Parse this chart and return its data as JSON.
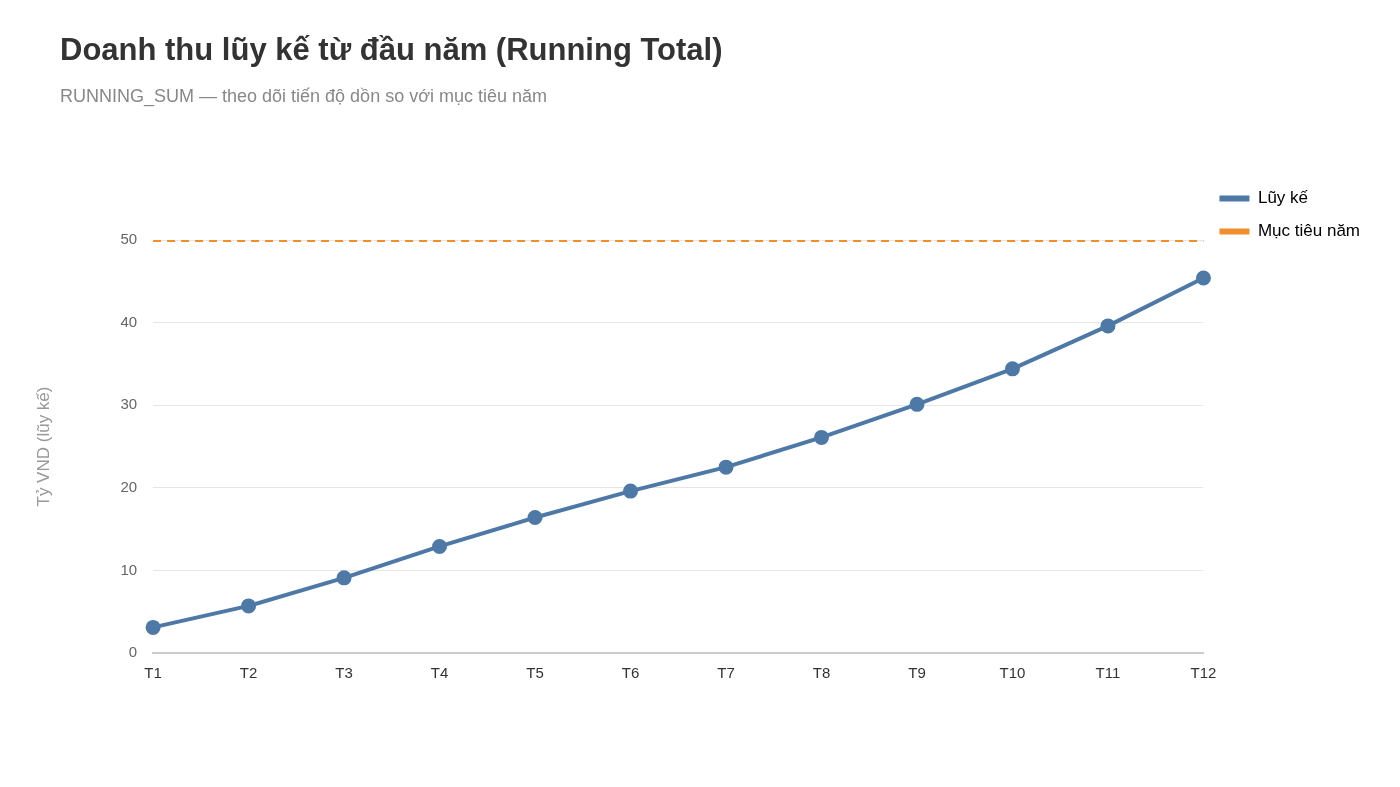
{
  "chart_data": {
    "type": "line",
    "title": "Doanh thu lũy kế từ đầu năm (Running Total)",
    "subtitle": "RUNNING_SUM — theo dõi tiến độ dồn so với mục tiêu năm",
    "ylabel": "Tỷ VND (lũy kế)",
    "categories": [
      "T1",
      "T2",
      "T3",
      "T4",
      "T5",
      "T6",
      "T7",
      "T8",
      "T9",
      "T10",
      "T11",
      "T12"
    ],
    "series": [
      {
        "name": "Lũy kế",
        "color": "#4e79a7",
        "values": [
          3.1,
          5.7,
          9.1,
          12.9,
          16.4,
          19.6,
          22.5,
          26.1,
          30.1,
          34.4,
          39.6,
          45.4
        ]
      },
      {
        "name": "Mục tiêu năm",
        "color": "#f28e2b",
        "values": [
          50,
          50,
          50,
          50,
          50,
          50,
          50,
          50,
          50,
          50,
          50,
          50
        ],
        "line_style": "dashed",
        "marker": "none"
      }
    ],
    "ylim": [
      0,
      50
    ],
    "yticks": [
      0,
      10,
      20,
      30,
      40,
      50
    ],
    "grid": "y",
    "legend": "top right",
    "marker": "circle",
    "line_style": "solid"
  }
}
